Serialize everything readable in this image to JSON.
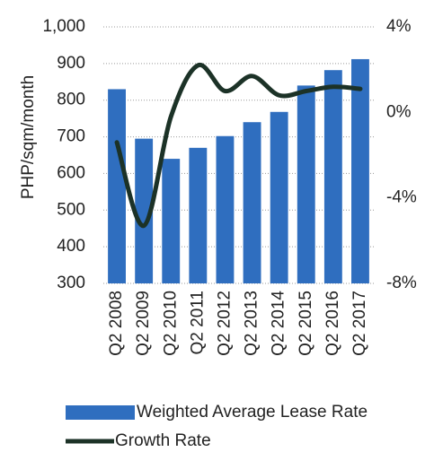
{
  "chart_data": {
    "type": "bar-line",
    "y_label": "PHP/sqm/month",
    "categories": [
      "Q2 2008",
      "Q2 2009",
      "Q2 2010",
      "Q2 2011",
      "Q2 2012",
      "Q2 2013",
      "Q2 2014",
      "Q2 2015",
      "Q2 2016",
      "Q2 2017"
    ],
    "series": [
      {
        "name": "Weighted Average Lease Rate",
        "type": "bar",
        "color": "#2f6ebf",
        "values": [
          830,
          695,
          640,
          670,
          702,
          740,
          768,
          840,
          882,
          912
        ]
      },
      {
        "name": "Growth Rate",
        "type": "line",
        "axis": "y2",
        "color": "#1c3227",
        "values": [
          -1.4,
          -5.3,
          -0.2,
          2.2,
          1.0,
          1.7,
          0.8,
          1.0,
          1.2,
          1.1
        ]
      }
    ],
    "ylim": [
      300,
      1000
    ],
    "yticks": [
      300,
      400,
      500,
      600,
      700,
      800,
      900,
      {
        "value": 1000,
        "label": "1,000"
      }
    ],
    "y2lim": [
      -8,
      4
    ],
    "y2ticks": [
      {
        "value": -8,
        "label": "-8%"
      },
      {
        "value": -4,
        "label": "-4%"
      },
      {
        "value": 0,
        "label": "0%"
      },
      {
        "value": 4,
        "label": "4%"
      }
    ],
    "grid": true,
    "legend": "bottom"
  }
}
